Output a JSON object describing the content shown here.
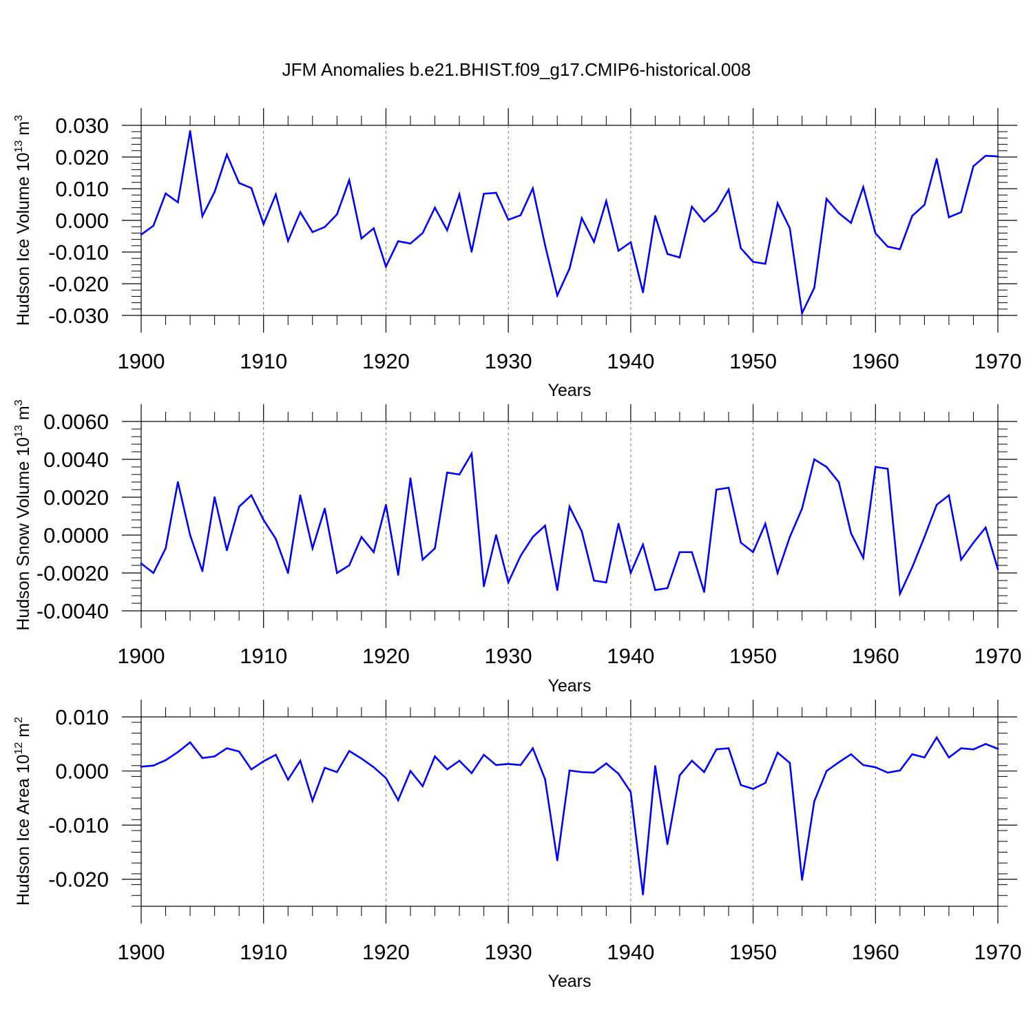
{
  "title": "JFM Anomalies b.e21.BHIST.f09_g17.CMIP6-historical.008",
  "chart_data": [
    {
      "type": "line",
      "xlabel": "Years",
      "ylabel": "Hudson Ice Volume 10",
      "ylabel_exponent": "13",
      "ylabel_unit": "m",
      "ylabel_unit_exponent": "3",
      "xlim": [
        1900,
        1970
      ],
      "ylim": [
        -0.03,
        0.03
      ],
      "x_ticks": [
        "1900",
        "1910",
        "1920",
        "1930",
        "1940",
        "1950",
        "1960",
        "1970"
      ],
      "y_ticks": [
        "0.030",
        "0.020",
        "0.010",
        "0.000",
        "-0.010",
        "-0.020",
        "-0.030"
      ],
      "y_tick_values": [
        0.03,
        0.02,
        0.01,
        0.0,
        -0.01,
        -0.02,
        -0.03
      ],
      "series_color": "#0000ff",
      "x": [
        1900,
        1901,
        1902,
        1903,
        1904,
        1905,
        1906,
        1907,
        1908,
        1909,
        1910,
        1911,
        1912,
        1913,
        1914,
        1915,
        1916,
        1917,
        1918,
        1919,
        1920,
        1921,
        1922,
        1923,
        1924,
        1925,
        1926,
        1927,
        1928,
        1929,
        1930,
        1931,
        1932,
        1933,
        1934,
        1935,
        1936,
        1937,
        1938,
        1939,
        1940,
        1941,
        1942,
        1943,
        1944,
        1945,
        1946,
        1947,
        1948,
        1949,
        1950,
        1951,
        1952,
        1953,
        1954,
        1955,
        1956,
        1957,
        1958,
        1959,
        1960,
        1961,
        1962,
        1963,
        1964,
        1965,
        1966,
        1967,
        1968,
        1969,
        1970
      ],
      "values": [
        -0.0045,
        -0.0017,
        0.0085,
        0.0057,
        0.0282,
        0.0013,
        0.009,
        0.0208,
        0.0118,
        0.0102,
        -0.0012,
        0.0082,
        -0.0065,
        0.0026,
        -0.0037,
        -0.0021,
        0.0019,
        0.0127,
        -0.0057,
        -0.0025,
        -0.0146,
        -0.0066,
        -0.0073,
        -0.004,
        0.004,
        -0.0031,
        0.0082,
        -0.0099,
        0.0084,
        0.0087,
        0.0002,
        0.0016,
        0.0101,
        -0.0078,
        -0.0237,
        -0.0152,
        0.0007,
        -0.0068,
        0.0061,
        -0.0096,
        -0.0069,
        -0.0227,
        0.0014,
        -0.0106,
        -0.0117,
        0.0043,
        -0.0004,
        0.003,
        0.0097,
        -0.0088,
        -0.0131,
        -0.0137,
        0.0054,
        -0.0025,
        -0.0293,
        -0.0213,
        0.0068,
        0.0023,
        -0.0008,
        0.0105,
        -0.0041,
        -0.0083,
        -0.0091,
        0.0014,
        0.0049,
        0.0194,
        0.001,
        0.0026,
        0.0171,
        0.0204,
        0.0202
      ]
    },
    {
      "type": "line",
      "xlabel": "Years",
      "ylabel": "Hudson Snow Volume 10",
      "ylabel_exponent": "13",
      "ylabel_unit": "m",
      "ylabel_unit_exponent": "3",
      "xlim": [
        1900,
        1970
      ],
      "ylim": [
        -0.004,
        0.006
      ],
      "x_ticks": [
        "1900",
        "1910",
        "1920",
        "1930",
        "1940",
        "1950",
        "1960",
        "1970"
      ],
      "y_ticks": [
        "0.0060",
        "0.0040",
        "0.0020",
        "0.0000",
        "-0.0020",
        "-0.0040"
      ],
      "y_tick_values": [
        0.006,
        0.004,
        0.002,
        0.0,
        -0.002,
        -0.004
      ],
      "series_color": "#0000ff",
      "x": [
        1900,
        1901,
        1902,
        1903,
        1904,
        1905,
        1906,
        1907,
        1908,
        1909,
        1910,
        1911,
        1912,
        1913,
        1914,
        1915,
        1916,
        1917,
        1918,
        1919,
        1920,
        1921,
        1922,
        1923,
        1924,
        1925,
        1926,
        1927,
        1928,
        1929,
        1930,
        1931,
        1932,
        1933,
        1934,
        1935,
        1936,
        1937,
        1938,
        1939,
        1940,
        1941,
        1942,
        1943,
        1944,
        1945,
        1946,
        1947,
        1948,
        1949,
        1950,
        1951,
        1952,
        1953,
        1954,
        1955,
        1956,
        1957,
        1958,
        1959,
        1960,
        1961,
        1962,
        1963,
        1964,
        1965,
        1966,
        1967,
        1968,
        1969,
        1970
      ],
      "values": [
        -0.0015,
        -0.002,
        -0.0007,
        0.0028,
        0.0,
        -0.0019,
        0.002,
        -0.0008,
        0.0015,
        0.0021,
        0.0008,
        -0.0002,
        -0.002,
        0.0021,
        -0.0007,
        0.0014,
        -0.002,
        -0.0016,
        -0.0001,
        -0.0009,
        0.0016,
        -0.0021,
        0.003,
        -0.0013,
        -0.0007,
        0.0033,
        0.0032,
        0.0043,
        -0.0027,
        0.0,
        -0.0025,
        -0.0011,
        -0.0001,
        0.0005,
        -0.0029,
        0.0015,
        0.0002,
        -0.0024,
        -0.0025,
        0.0006,
        -0.002,
        -0.0005,
        -0.0029,
        -0.0028,
        -0.0009,
        -0.0009,
        -0.003,
        0.0024,
        0.0025,
        -0.0004,
        -0.0009,
        0.0006,
        -0.002,
        -0.0001,
        0.0014,
        0.004,
        0.0036,
        0.0028,
        0.0001,
        -0.0012,
        0.0036,
        0.0035,
        -0.0031,
        -0.0017,
        -0.0001,
        0.0016,
        0.0021,
        -0.0013,
        -0.0004,
        0.0004,
        -0.0018
      ]
    },
    {
      "type": "line",
      "xlabel": "Years",
      "ylabel": "Hudson Ice Area 10",
      "ylabel_exponent": "12",
      "ylabel_unit": "m",
      "ylabel_unit_exponent": "2",
      "xlim": [
        1900,
        1970
      ],
      "ylim": [
        -0.025,
        0.01
      ],
      "x_ticks": [
        "1900",
        "1910",
        "1920",
        "1930",
        "1940",
        "1950",
        "1960",
        "1970"
      ],
      "y_ticks": [
        "0.010",
        "0.000",
        "-0.010",
        "-0.020"
      ],
      "y_tick_values": [
        0.01,
        0.0,
        -0.01,
        -0.02
      ],
      "series_color": "#0000ff",
      "x": [
        1900,
        1901,
        1902,
        1903,
        1904,
        1905,
        1906,
        1907,
        1908,
        1909,
        1910,
        1911,
        1912,
        1913,
        1914,
        1915,
        1916,
        1917,
        1918,
        1919,
        1920,
        1921,
        1922,
        1923,
        1924,
        1925,
        1926,
        1927,
        1928,
        1929,
        1930,
        1931,
        1932,
        1933,
        1934,
        1935,
        1936,
        1937,
        1938,
        1939,
        1940,
        1941,
        1942,
        1943,
        1944,
        1945,
        1946,
        1947,
        1948,
        1949,
        1950,
        1951,
        1952,
        1953,
        1954,
        1955,
        1956,
        1957,
        1958,
        1959,
        1960,
        1961,
        1962,
        1963,
        1964,
        1965,
        1966,
        1967,
        1968,
        1969,
        1970
      ],
      "values": [
        0.0008,
        0.001,
        0.002,
        0.0035,
        0.0053,
        0.0024,
        0.0027,
        0.0042,
        0.0036,
        0.0003,
        0.0018,
        0.003,
        -0.0016,
        0.0019,
        -0.0055,
        0.0006,
        -0.0002,
        0.0037,
        0.0023,
        0.0007,
        -0.0013,
        -0.0054,
        0.0,
        -0.0028,
        0.0027,
        0.0003,
        0.0019,
        -0.0004,
        0.003,
        0.0011,
        0.0013,
        0.0011,
        0.0042,
        -0.0015,
        -0.0165,
        0.0001,
        -0.0002,
        -0.0003,
        0.0014,
        -0.0005,
        -0.0039,
        -0.0228,
        0.0009,
        -0.0135,
        -0.0008,
        0.0019,
        -0.0002,
        0.004,
        0.0042,
        -0.0026,
        -0.0033,
        -0.0022,
        0.0034,
        0.0015,
        -0.0201,
        -0.0056,
        0.0,
        0.0016,
        0.0031,
        0.0011,
        0.0007,
        -0.0003,
        0.0001,
        0.0031,
        0.0025,
        0.0062,
        0.0025,
        0.0042,
        0.004,
        0.005,
        0.0041
      ]
    }
  ]
}
